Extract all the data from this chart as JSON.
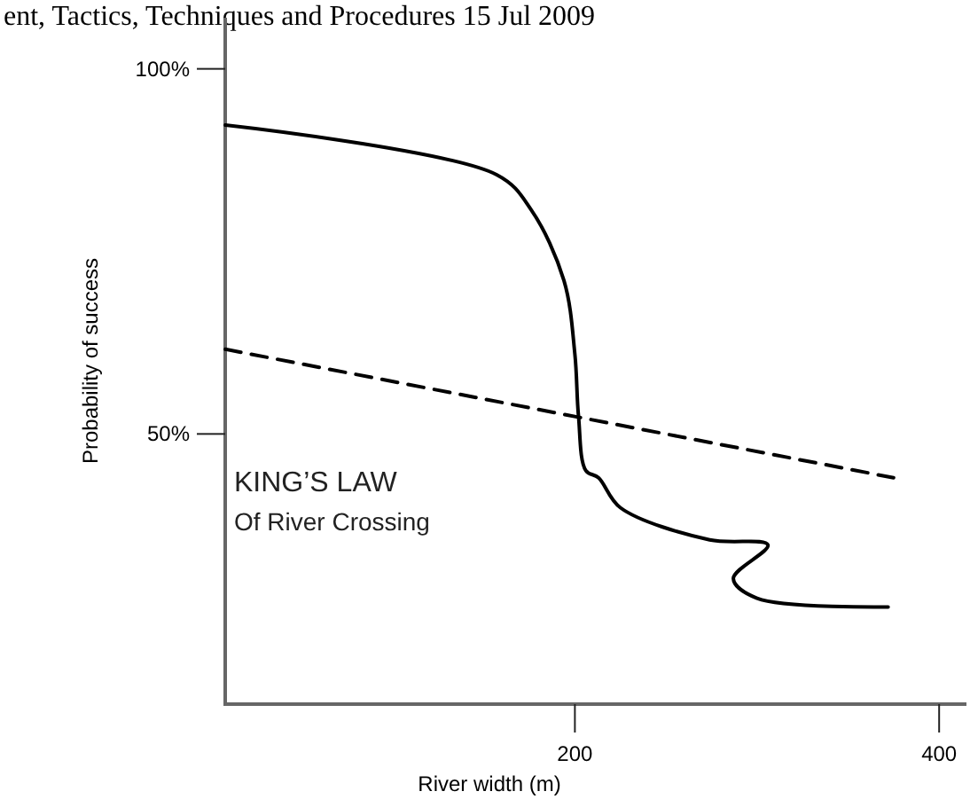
{
  "chart_data": {
    "type": "line",
    "xlabel": "River width (m)",
    "ylabel": "Probability of success",
    "xlim": [
      8,
      415
    ],
    "ylim": [
      13,
      107
    ],
    "xticks": [
      200,
      400
    ],
    "yticks": [
      {
        "value": 50,
        "label": "50%"
      },
      {
        "value": 100,
        "label": "100%"
      }
    ],
    "grid": false,
    "marker": "none",
    "series": [
      {
        "color": "#000000",
        "line_style": "solid",
        "x": [
          8,
          157,
          176,
          194,
          200,
          202,
          206,
          213,
          225,
          274,
          306,
          287,
          300,
          372
        ],
        "values": [
          92.3,
          85.5,
          80.7,
          71,
          60.9,
          52.4,
          45,
          44,
          39.9,
          35.5,
          34.8,
          30.2,
          27.5,
          26.3
        ]
      },
      {
        "color": "#000000",
        "line_style": "dashed",
        "x": [
          8,
          375
        ],
        "values": [
          61.6,
          44
        ]
      }
    ],
    "annotations": [
      "ent, Tactics, Techniques and Procedures 15 Jul 2009",
      "KING’S LAW",
      "Of River Crossing"
    ]
  }
}
